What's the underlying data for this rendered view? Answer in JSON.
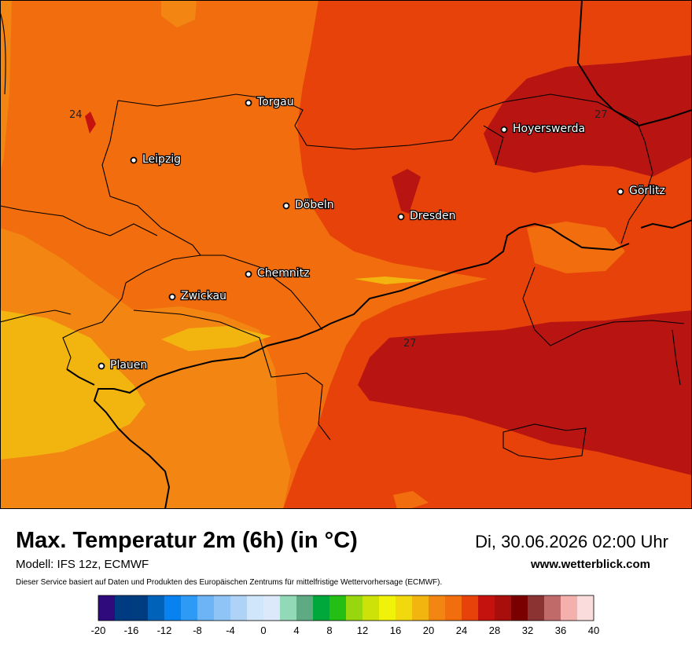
{
  "map": {
    "cities": [
      {
        "name": "Torgau"
      },
      {
        "name": "Leipzig"
      },
      {
        "name": "Hoyerswerda"
      },
      {
        "name": "Görlitz"
      },
      {
        "name": "Döbeln"
      },
      {
        "name": "Dresden"
      },
      {
        "name": "Chemnitz"
      },
      {
        "name": "Zwickau"
      },
      {
        "name": "Plauen"
      }
    ],
    "isolines": [
      "24",
      "27",
      "27"
    ],
    "colors": {
      "c20": "#f2b50f",
      "c22": "#f38512",
      "c24": "#f16d0d",
      "c26": "#e8420b",
      "c28": "#b81512"
    }
  },
  "header": {
    "title": "Max. Temperatur 2m (6h) (in °C)",
    "datetime": "Di, 30.06.2026 02:00 Uhr",
    "model": "Modell: IFS 12z, ECMWF",
    "website": "www.wetterblick.com",
    "disclaimer": "Dieser Service basiert auf Daten und Produkten des Europäischen Zentrums für mittelfristige Wettervorhersage (ECMWF)."
  },
  "colorbar": {
    "colors": [
      "#2e0a7c",
      "#003b82",
      "#003d80",
      "#0062b8",
      "#0782ee",
      "#2d9af6",
      "#6cb4f6",
      "#8ec4f6",
      "#aed3f7",
      "#cfe6fb",
      "#dce9fb",
      "#92d9b8",
      "#5eab83",
      "#00a73b",
      "#23bf14",
      "#98d70d",
      "#cde208",
      "#f0f20a",
      "#f2d90e",
      "#f2b50f",
      "#f38512",
      "#f16d0d",
      "#e8420b",
      "#c4120f",
      "#a80f0c",
      "#7a0000",
      "#8b3232",
      "#c06a6a",
      "#f4b0ad",
      "#fbdcdc"
    ],
    "ticks": [
      "-20",
      "-16",
      "-12",
      "-8",
      "-4",
      "0",
      "4",
      "8",
      "12",
      "16",
      "20",
      "24",
      "28",
      "32",
      "36",
      "40"
    ]
  }
}
